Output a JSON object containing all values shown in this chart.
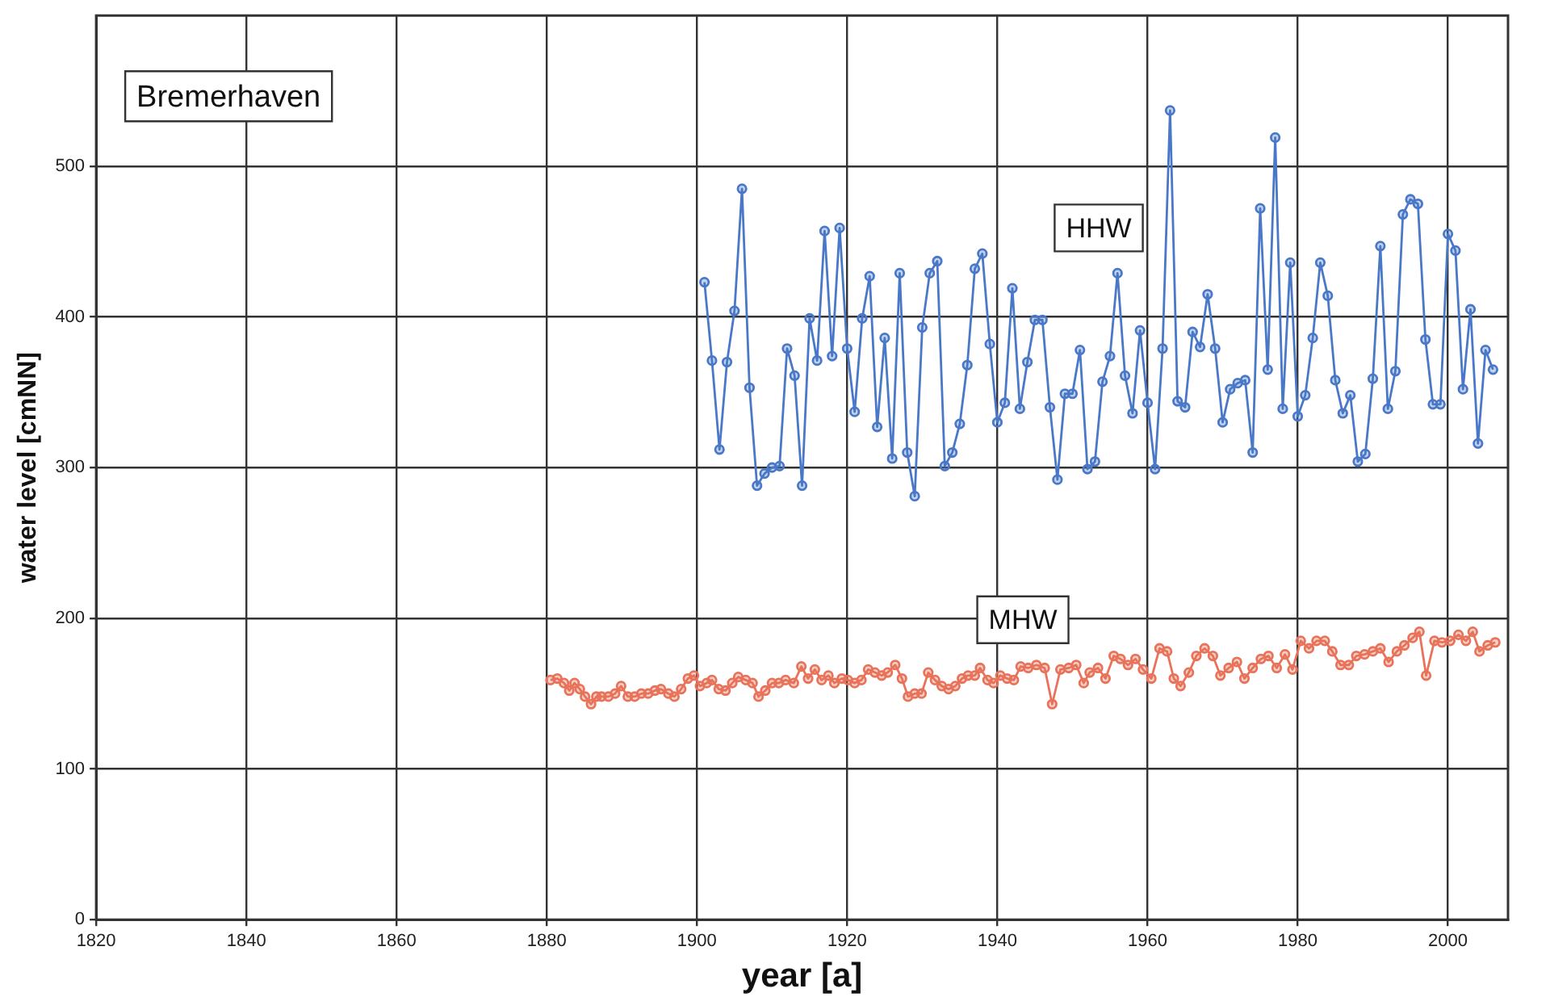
{
  "chart_data": {
    "type": "line",
    "xlabel": "year [a]",
    "ylabel": "water level [cmNN]",
    "annotations": [
      "Bremerhaven"
    ],
    "xlim": [
      1820,
      2008
    ],
    "xticks": [
      1820,
      1840,
      1860,
      1880,
      1900,
      1920,
      1940,
      1960,
      1980,
      2000
    ],
    "ylim": [
      0,
      600
    ],
    "yticks": [
      0,
      100,
      200,
      300,
      400,
      500
    ],
    "grid": true,
    "legend": false,
    "marker": "circle",
    "line_style": "solid",
    "series": [
      {
        "name": "HHW",
        "color": "#4a78c8",
        "x": [
          1901,
          1902,
          1903,
          1904,
          1905,
          1906,
          1907,
          1908,
          1909,
          1910,
          1911,
          1912,
          1913,
          1914,
          1915,
          1916,
          1917,
          1918,
          1919,
          1920,
          1921,
          1922,
          1923,
          1924,
          1925,
          1926,
          1927,
          1928,
          1929,
          1930,
          1931,
          1932,
          1933,
          1934,
          1935,
          1936,
          1937,
          1938,
          1939,
          1940,
          1941,
          1942,
          1943,
          1944,
          1945,
          1946,
          1947,
          1948,
          1949,
          1950,
          1951,
          1952,
          1953,
          1954,
          1955,
          1956,
          1957,
          1958,
          1959,
          1960,
          1961,
          1962,
          1963,
          1964,
          1965,
          1966,
          1967,
          1968,
          1969,
          1970,
          1971,
          1972,
          1973,
          1974,
          1975,
          1976,
          1977,
          1978,
          1979,
          1980,
          1981,
          1982,
          1983,
          1984,
          1985,
          1986,
          1987,
          1988,
          1989,
          1990,
          1991,
          1992,
          1993,
          1994,
          1995,
          1996,
          1997,
          1998,
          1999,
          2000,
          2001,
          2002,
          2003,
          2004,
          2005,
          2006
        ],
        "values": [
          423,
          371,
          312,
          370,
          404,
          485,
          353,
          288,
          296,
          300,
          301,
          379,
          361,
          288,
          399,
          371,
          457,
          374,
          459,
          379,
          337,
          399,
          427,
          327,
          386,
          306,
          429,
          310,
          281,
          393,
          429,
          437,
          301,
          310,
          329,
          368,
          432,
          442,
          382,
          330,
          343,
          419,
          339,
          370,
          398,
          398,
          340,
          292,
          349,
          349,
          378,
          299,
          304,
          357,
          374,
          429,
          361,
          336,
          391,
          343,
          299,
          379,
          537,
          344,
          340,
          390,
          380,
          415,
          379,
          330,
          352,
          356,
          358,
          310,
          472,
          365,
          519,
          339,
          436,
          334,
          348,
          386,
          436,
          414,
          358,
          336,
          348,
          304,
          309,
          359,
          447,
          339,
          364,
          468,
          478,
          475,
          385,
          342,
          342,
          455,
          444,
          352,
          405,
          316,
          378,
          365
        ]
      },
      {
        "name": "MHW",
        "color": "#e8735a",
        "x": [
          1880.5,
          1881.4,
          1882.3,
          1883.0,
          1883.7,
          1884.4,
          1885.1,
          1885.9,
          1886.6,
          1887.3,
          1888.2,
          1889.1,
          1889.9,
          1890.8,
          1891.7,
          1892.6,
          1893.5,
          1894.4,
          1895.2,
          1896.2,
          1897.0,
          1897.9,
          1898.8,
          1899.6,
          1900.4,
          1901.3,
          1902.0,
          1902.9,
          1903.8,
          1904.7,
          1905.5,
          1906.5,
          1907.4,
          1908.2,
          1909.1,
          1910.0,
          1910.9,
          1911.8,
          1912.9,
          1913.9,
          1914.8,
          1915.7,
          1916.6,
          1917.5,
          1918.3,
          1919.3,
          1920.1,
          1921.0,
          1921.9,
          1922.8,
          1923.7,
          1924.6,
          1925.4,
          1926.4,
          1927.3,
          1928.1,
          1929.0,
          1929.9,
          1930.8,
          1931.7,
          1932.6,
          1933.5,
          1934.4,
          1935.3,
          1936.1,
          1937.0,
          1937.7,
          1938.7,
          1939.5,
          1940.4,
          1941.3,
          1942.2,
          1943.1,
          1944.1,
          1945.2,
          1946.3,
          1947.3,
          1948.4,
          1949.5,
          1950.5,
          1951.5,
          1952.3,
          1953.4,
          1954.4,
          1955.5,
          1956.4,
          1957.4,
          1958.4,
          1959.4,
          1960.5,
          1961.6,
          1962.6,
          1963.5,
          1964.4,
          1965.5,
          1966.5,
          1967.6,
          1968.7,
          1969.7,
          1970.8,
          1971.9,
          1972.9,
          1974.0,
          1975.1,
          1976.1,
          1977.2,
          1978.3,
          1979.3,
          1980.4,
          1981.5,
          1982.5,
          1983.6,
          1984.6,
          1985.7,
          1986.8,
          1987.8,
          1988.9,
          1990.0,
          1991.0,
          1992.1,
          1993.2,
          1994.2,
          1995.3,
          1996.2,
          1997.1,
          1998.2,
          1999.2,
          2000.3,
          2001.4,
          2002.4,
          2003.3,
          2004.2,
          2005.3,
          2006.3
        ],
        "values": [
          159,
          160,
          157,
          152,
          157,
          153,
          148,
          143,
          148,
          148,
          148,
          150,
          155,
          148,
          148,
          150,
          150,
          152,
          153,
          150,
          148,
          153,
          160,
          162,
          155,
          157,
          159,
          153,
          152,
          157,
          161,
          159,
          157,
          148,
          152,
          157,
          157,
          159,
          157,
          168,
          160,
          166,
          159,
          162,
          157,
          160,
          159,
          157,
          159,
          166,
          164,
          162,
          164,
          169,
          160,
          148,
          150,
          150,
          164,
          159,
          155,
          153,
          155,
          160,
          162,
          162,
          167,
          159,
          157,
          162,
          160,
          159,
          168,
          167,
          169,
          167,
          143,
          166,
          167,
          169,
          157,
          164,
          167,
          160,
          175,
          173,
          169,
          173,
          166,
          160,
          180,
          178,
          160,
          155,
          164,
          175,
          180,
          175,
          162,
          167,
          171,
          160,
          167,
          173,
          175,
          167,
          176,
          166,
          185,
          180,
          185,
          185,
          178,
          169,
          169,
          175,
          176,
          178,
          180,
          171,
          178,
          182,
          187,
          191,
          162,
          185,
          184,
          185,
          189,
          185,
          191,
          178,
          182,
          184
        ]
      }
    ]
  }
}
